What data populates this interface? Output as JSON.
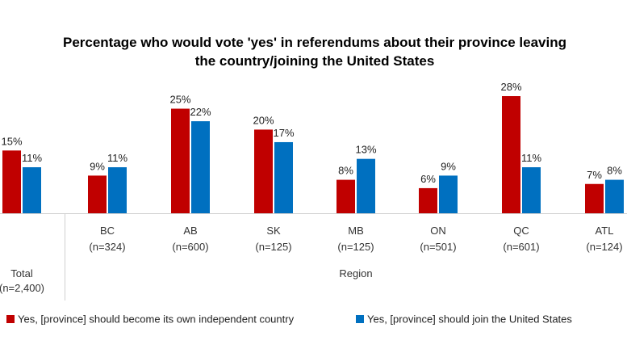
{
  "chart_data": {
    "type": "bar",
    "title_line1": "Percentage who would vote 'yes' in referendums about their province leaving",
    "title_line2": "the country/joining the United States",
    "categories": [
      {
        "name": "Total",
        "n": "(n=2,400)"
      },
      {
        "name": "BC",
        "n": "(n=324)"
      },
      {
        "name": "AB",
        "n": "(n=600)"
      },
      {
        "name": "SK",
        "n": "(n=125)"
      },
      {
        "name": "MB",
        "n": "(n=125)"
      },
      {
        "name": "ON",
        "n": "(n=501)"
      },
      {
        "name": "QC",
        "n": "(n=601)"
      },
      {
        "name": "ATL",
        "n": "(n=124)"
      }
    ],
    "group_label": "Region",
    "series": [
      {
        "name": "Yes, [province] should become its own independent country",
        "color": "#c00000",
        "values": [
          15,
          9,
          25,
          20,
          8,
          6,
          28,
          7
        ],
        "labels": [
          "15%",
          "9%",
          "25%",
          "20%",
          "8%",
          "6%",
          "28%",
          "7%"
        ]
      },
      {
        "name": "Yes, [province] should join the United States",
        "color": "#0070c0",
        "values": [
          11,
          11,
          22,
          17,
          13,
          9,
          11,
          8
        ],
        "labels": [
          "11%",
          "11%",
          "22%",
          "17%",
          "13%",
          "9%",
          "11%",
          "8%"
        ]
      }
    ],
    "ylim": [
      0,
      28
    ],
    "grid": false,
    "legend_position": "bottom"
  }
}
